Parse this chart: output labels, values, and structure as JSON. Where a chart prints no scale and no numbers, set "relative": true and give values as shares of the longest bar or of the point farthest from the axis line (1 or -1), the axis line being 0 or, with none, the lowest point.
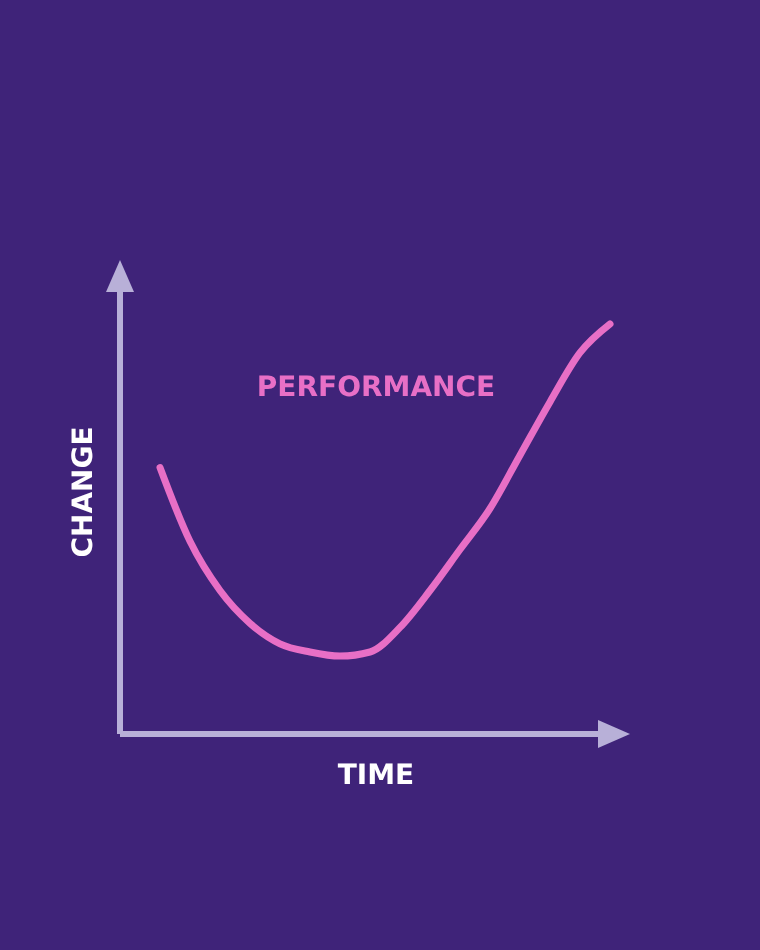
{
  "chart_data": {
    "type": "line",
    "relative": true,
    "xlabel": "TIME",
    "ylabel": "CHANGE",
    "categories": [
      null,
      null,
      null,
      null,
      null,
      null,
      null,
      null,
      null,
      null,
      null,
      null,
      null,
      null,
      null,
      null
    ],
    "series": [
      {
        "name": "PERFORMANCE",
        "color": "#e86fc6",
        "values": [
          0.65,
          0.47,
          0.35,
          0.27,
          0.22,
          0.2,
          0.19,
          0.2,
          0.26,
          0.35,
          0.45,
          0.55,
          0.68,
          0.81,
          0.93,
          1
        ]
      }
    ],
    "marker": "none",
    "line_style": "solid"
  }
}
